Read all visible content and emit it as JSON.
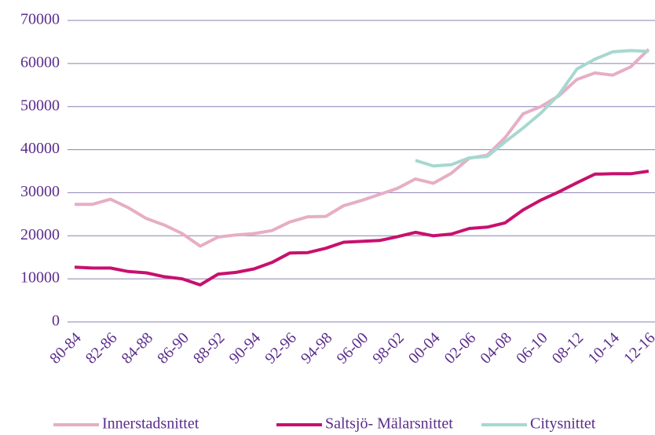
{
  "chart_data": {
    "type": "line",
    "categories": [
      "80-84",
      null,
      "82-86",
      null,
      "84-88",
      null,
      "86-90",
      null,
      "88-92",
      null,
      "90-94",
      null,
      "92-96",
      null,
      "94-98",
      null,
      "96-00",
      null,
      "98-02",
      null,
      "00-04",
      null,
      "02-06",
      null,
      "04-08",
      null,
      "06-10",
      null,
      "08-12",
      null,
      "10-14",
      null,
      "12-16"
    ],
    "series": [
      {
        "name": "Innerstadsnittet",
        "color": "#e6aec4",
        "values": [
          27300,
          27300,
          28500,
          26500,
          24000,
          22500,
          20500,
          17600,
          19700,
          20200,
          20500,
          21200,
          23200,
          24400,
          24500,
          27000,
          28200,
          29600,
          31000,
          33200,
          32200,
          34500,
          38000,
          38700,
          42800,
          48300,
          50000,
          52500,
          56300,
          57800,
          57300,
          59200,
          63300
        ]
      },
      {
        "name": "Saltsjö- Mälarsnittet",
        "color": "#c8106e",
        "values": [
          12700,
          12500,
          12500,
          11700,
          11400,
          10500,
          10000,
          8600,
          11100,
          11500,
          12300,
          13800,
          16000,
          16100,
          17100,
          18500,
          18700,
          18900,
          19800,
          20800,
          20000,
          20400,
          21700,
          22000,
          23000,
          26000,
          28300,
          30200,
          32300,
          34300,
          34400,
          34400,
          35000
        ]
      },
      {
        "name": "Citysnittet",
        "color": "#a6d8d0",
        "values": [
          null,
          null,
          null,
          null,
          null,
          null,
          null,
          null,
          null,
          null,
          null,
          null,
          null,
          null,
          null,
          null,
          null,
          null,
          null,
          37500,
          36200,
          36500,
          38100,
          38400,
          41800,
          45000,
          48500,
          52800,
          58700,
          61000,
          62700,
          63000,
          62800
        ]
      }
    ],
    "ylim": [
      0,
      70000
    ],
    "yticks": [
      0,
      10000,
      20000,
      30000,
      40000,
      50000,
      60000,
      70000
    ],
    "grid": true,
    "legend": "bottom"
  }
}
